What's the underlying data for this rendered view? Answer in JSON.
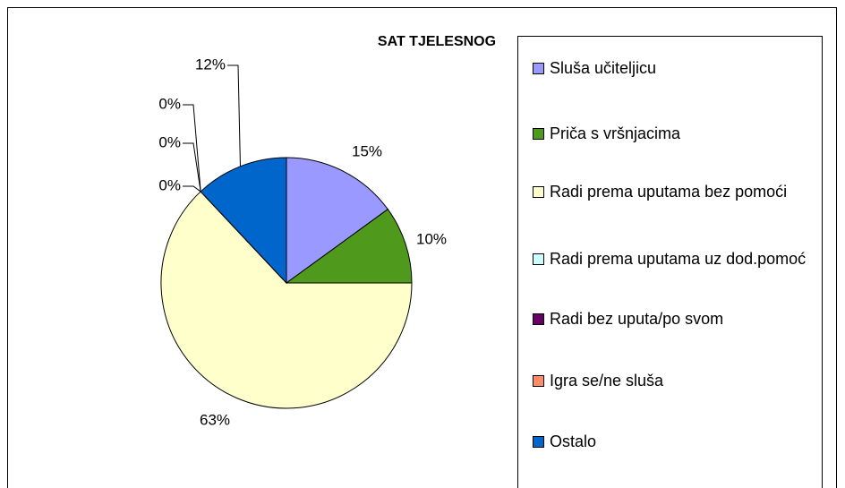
{
  "chart_data": {
    "type": "pie",
    "title": "SAT TJELESNOG",
    "categories": [
      "Sluša učiteljicu",
      "Priča s vršnjacima",
      "Radi prema uputama bez pomoći",
      "Radi prema uputama uz dod.pomoć",
      "Radi bez uputa/po svom",
      "Igra se/ne sluša",
      "Ostalo"
    ],
    "values": [
      15,
      10,
      63,
      0,
      0,
      0,
      12
    ],
    "value_labels": [
      "15%",
      "10%",
      "63%",
      "0%",
      "0%",
      "0%",
      "12%"
    ],
    "colors": [
      "#9999ff",
      "#4f9a1c",
      "#ffffcc",
      "#ccffff",
      "#660066",
      "#ff8c66",
      "#0066cc"
    ],
    "legend": "right"
  }
}
